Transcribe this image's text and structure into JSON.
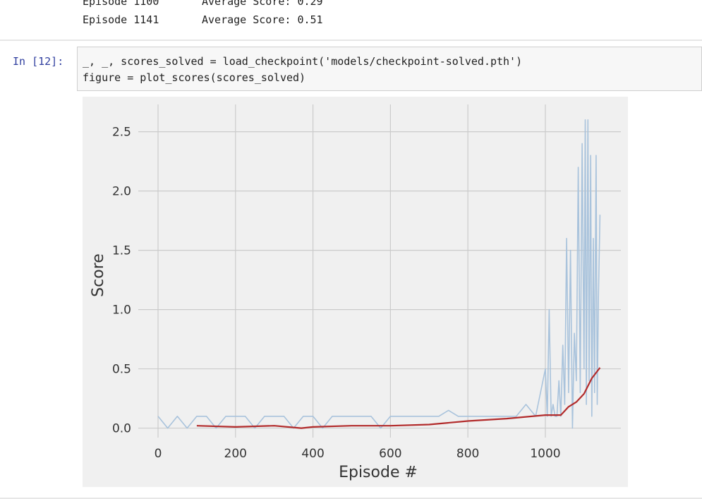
{
  "output_lines": [
    [
      "Episode 1100",
      "Average Score: 0.29"
    ],
    [
      "Episode 1141",
      "Average Score: 0.51"
    ]
  ],
  "cell": {
    "prompt": "In [12]:",
    "code_lines": [
      "_, _, scores_solved = load_checkpoint('models/checkpoint-solved.pth')",
      "figure = plot_scores(scores_solved)"
    ]
  },
  "chart_data": {
    "type": "line",
    "xlabel": "Episode #",
    "ylabel": "Score",
    "xlim": [
      -51,
      1195
    ],
    "ylim": [
      -0.08,
      2.73
    ],
    "xticks": [
      0,
      200,
      400,
      600,
      800,
      1000
    ],
    "yticks": [
      {
        "value": 0,
        "label": "0.0"
      },
      0.5,
      {
        "value": 1,
        "label": "1.0"
      },
      1.5,
      {
        "value": 2,
        "label": "2.0"
      },
      2.5
    ],
    "grid": true,
    "series": [
      {
        "color": "#a9c3dc",
        "x": [
          0,
          25,
          50,
          75,
          100,
          125,
          150,
          175,
          200,
          225,
          250,
          275,
          300,
          325,
          350,
          375,
          400,
          425,
          450,
          475,
          500,
          525,
          550,
          575,
          600,
          625,
          650,
          675,
          700,
          725,
          750,
          775,
          800,
          825,
          850,
          875,
          900,
          925,
          950,
          975,
          1000,
          1005,
          1010,
          1015,
          1020,
          1025,
          1030,
          1035,
          1040,
          1045,
          1050,
          1055,
          1060,
          1065,
          1070,
          1075,
          1080,
          1085,
          1090,
          1095,
          1100,
          1103,
          1106,
          1110,
          1113,
          1117,
          1120,
          1124,
          1127,
          1131,
          1134,
          1137,
          1141
        ],
        "values": [
          0.1,
          0,
          0.1,
          0,
          0.1,
          0.1,
          0,
          0.1,
          0.1,
          0.1,
          0,
          0.1,
          0.1,
          0.1,
          0,
          0.1,
          0.1,
          0,
          0.1,
          0.1,
          0.1,
          0.1,
          0.1,
          0,
          0.1,
          0.1,
          0.1,
          0.1,
          0.1,
          0.1,
          0.15,
          0.1,
          0.1,
          0.1,
          0.1,
          0.1,
          0.1,
          0.1,
          0.2,
          0.1,
          0.5,
          0.1,
          1.0,
          0.1,
          0.2,
          0.1,
          0.1,
          0.4,
          0.1,
          0.7,
          0.2,
          1.6,
          0.3,
          1.5,
          0,
          0.8,
          0.4,
          2.2,
          0.3,
          2.4,
          0.5,
          2.6,
          0.2,
          2.6,
          0.4,
          2.3,
          0.1,
          1.6,
          0.3,
          2.3,
          0.2,
          1.1,
          1.8
        ]
      },
      {
        "color": "#b22b2b",
        "x": [
          100,
          200,
          300,
          370,
          400,
          500,
          600,
          700,
          800,
          900,
          1000,
          1040,
          1060,
          1080,
          1100,
          1120,
          1141
        ],
        "values": [
          0.02,
          0.01,
          0.02,
          0,
          0.01,
          0.02,
          0.02,
          0.03,
          0.06,
          0.08,
          0.11,
          0.11,
          0.18,
          0.22,
          0.29,
          0.42,
          0.51
        ]
      }
    ]
  }
}
